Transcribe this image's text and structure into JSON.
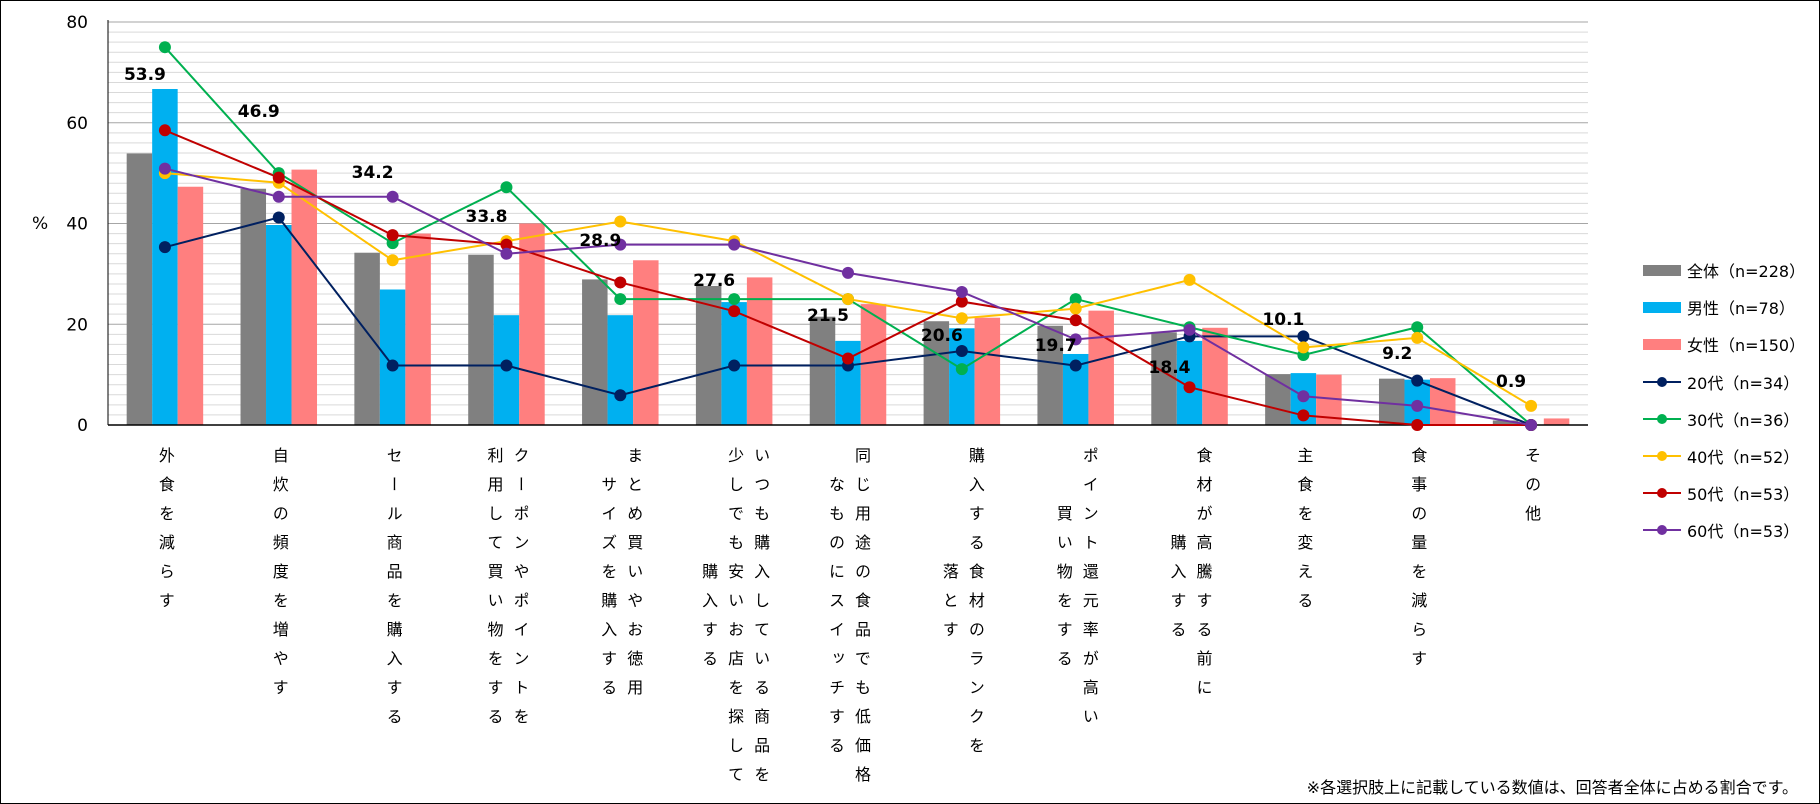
{
  "chart_data": {
    "type": "bar+line",
    "ylabel": "%",
    "ylim": [
      0,
      80
    ],
    "yticks": [
      0,
      20,
      40,
      60,
      80
    ],
    "grid": true,
    "legend_placement": "right",
    "categories": [
      [
        "外食を減らす"
      ],
      [
        "自炊の頻度を増やす"
      ],
      [
        "セール商品を購入する"
      ],
      [
        "クーポンやポイントを",
        "利用して買い物をする"
      ],
      [
        "まとめ買いやお徳用",
        "サイズを購入する"
      ],
      [
        "いつも購入している商品を",
        "少しでも安いお店を探して",
        "購入する"
      ],
      [
        "同じ用途の食品でも低価格",
        "なものにスイッチする"
      ],
      [
        "購入する食材のランクを",
        "落とす"
      ],
      [
        "ポイント還元率が高い",
        "買い物をする"
      ],
      [
        "食材が高騰する前に",
        "購入する"
      ],
      [
        "主食を変える"
      ],
      [
        "食事の量を減らす"
      ],
      [
        "その他"
      ]
    ],
    "bar_series": [
      {
        "name": "全体（n=228）",
        "color": "#808080",
        "values": [
          53.9,
          46.9,
          34.2,
          33.8,
          28.9,
          27.6,
          21.5,
          20.6,
          19.7,
          18.4,
          10.1,
          9.2,
          0.9
        ]
      },
      {
        "name": "男性（n=78）",
        "color": "#00B0F0",
        "values": [
          66.7,
          39.7,
          26.9,
          21.8,
          21.8,
          24.4,
          16.7,
          19.2,
          14.1,
          16.7,
          10.3,
          9.0,
          0.0
        ]
      },
      {
        "name": "女性（n=150）",
        "color": "#FF7F7F",
        "values": [
          47.3,
          50.7,
          38.0,
          40.0,
          32.7,
          29.3,
          24.0,
          21.3,
          22.7,
          19.3,
          10.0,
          9.3,
          1.3
        ]
      }
    ],
    "line_series": [
      {
        "name": "20代（n=34）",
        "color": "#002060",
        "values": [
          35.3,
          41.2,
          11.8,
          11.8,
          5.9,
          11.8,
          11.8,
          14.7,
          11.8,
          17.6,
          17.6,
          8.8,
          0.0
        ]
      },
      {
        "name": "30代（n=36）",
        "color": "#00B050",
        "values": [
          75.0,
          50.0,
          36.1,
          47.2,
          25.0,
          25.0,
          25.0,
          11.1,
          25.0,
          19.4,
          13.9,
          19.4,
          0.0
        ]
      },
      {
        "name": "40代（n=52）",
        "color": "#FFC000",
        "values": [
          50.0,
          48.1,
          32.7,
          36.5,
          40.4,
          36.5,
          25.0,
          21.2,
          23.1,
          28.8,
          15.4,
          17.3,
          3.8
        ]
      },
      {
        "name": "50代（n=53）",
        "color": "#C00000",
        "values": [
          58.5,
          49.1,
          37.7,
          35.8,
          28.3,
          22.6,
          13.2,
          24.5,
          20.8,
          7.5,
          1.9,
          0.0,
          0.0
        ]
      },
      {
        "name": "60代（n=53）",
        "color": "#7030A0",
        "values": [
          50.9,
          45.3,
          45.3,
          34.0,
          35.8,
          35.8,
          30.2,
          26.4,
          17.0,
          18.9,
          5.7,
          3.8,
          0.0
        ]
      }
    ],
    "data_labels": [
      "53.9",
      "46.9",
      "34.2",
      "33.8",
      "28.9",
      "27.6",
      "21.5",
      "20.6",
      "19.7",
      "18.4",
      "10.1",
      "9.2",
      "0.9"
    ],
    "footnote": "※各選択肢上に記載している数値は、回答者全体に占める割合です。"
  }
}
